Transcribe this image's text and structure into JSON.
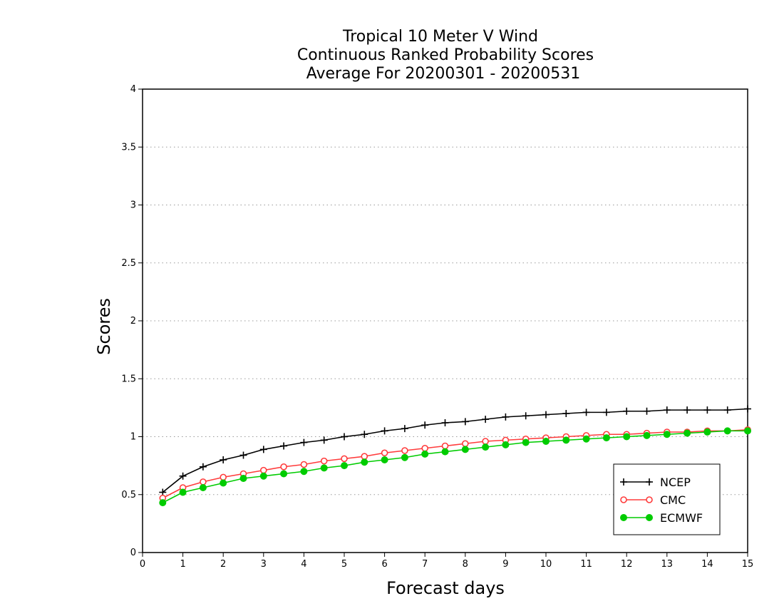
{
  "chart_data": {
    "type": "line",
    "title_lines": [
      "Tropical 10 Meter V Wind",
      "Continuous Ranked Probability Scores",
      "Average For 20200301 - 20200531"
    ],
    "xlabel": "Forecast days",
    "ylabel": "Scores",
    "xlim": [
      0,
      15
    ],
    "ylim": [
      0,
      4
    ],
    "x_ticks": [
      "0",
      "1",
      "2",
      "3",
      "4",
      "5",
      "6",
      "7",
      "8",
      "9",
      "10",
      "11",
      "12",
      "13",
      "14",
      "15"
    ],
    "y_ticks": [
      "0",
      "0.5",
      "1",
      "1.5",
      "2",
      "2.5",
      "3",
      "3.5",
      "4"
    ],
    "grid": "horizontal-dotted",
    "legend_position": "bottom-right",
    "x": [
      0.5,
      1,
      1.5,
      2,
      2.5,
      3,
      3.5,
      4,
      4.5,
      5,
      5.5,
      6,
      6.5,
      7,
      7.5,
      8,
      8.5,
      9,
      9.5,
      10,
      10.5,
      11,
      11.5,
      12,
      12.5,
      13,
      13.5,
      14,
      14.5,
      15
    ],
    "series": [
      {
        "name": "NCEP",
        "color": "#000000",
        "marker": "plus",
        "values": [
          0.52,
          0.66,
          0.74,
          0.8,
          0.84,
          0.89,
          0.92,
          0.95,
          0.97,
          1.0,
          1.02,
          1.05,
          1.07,
          1.1,
          1.12,
          1.13,
          1.15,
          1.17,
          1.18,
          1.19,
          1.2,
          1.21,
          1.21,
          1.22,
          1.22,
          1.23,
          1.23,
          1.23,
          1.23,
          1.24
        ]
      },
      {
        "name": "CMC",
        "color": "#ff3b3b",
        "marker": "open-circle",
        "values": [
          0.47,
          0.56,
          0.61,
          0.65,
          0.68,
          0.71,
          0.74,
          0.76,
          0.79,
          0.81,
          0.83,
          0.86,
          0.88,
          0.9,
          0.92,
          0.94,
          0.96,
          0.97,
          0.98,
          0.99,
          1.0,
          1.01,
          1.02,
          1.02,
          1.03,
          1.04,
          1.04,
          1.05,
          1.05,
          1.06
        ]
      },
      {
        "name": "ECMWF",
        "color": "#00cc00",
        "marker": "filled-circle",
        "values": [
          0.43,
          0.52,
          0.56,
          0.6,
          0.64,
          0.66,
          0.68,
          0.7,
          0.73,
          0.75,
          0.78,
          0.8,
          0.82,
          0.85,
          0.87,
          0.89,
          0.91,
          0.93,
          0.95,
          0.96,
          0.97,
          0.98,
          0.99,
          1.0,
          1.01,
          1.02,
          1.03,
          1.04,
          1.05,
          1.05
        ]
      }
    ]
  }
}
